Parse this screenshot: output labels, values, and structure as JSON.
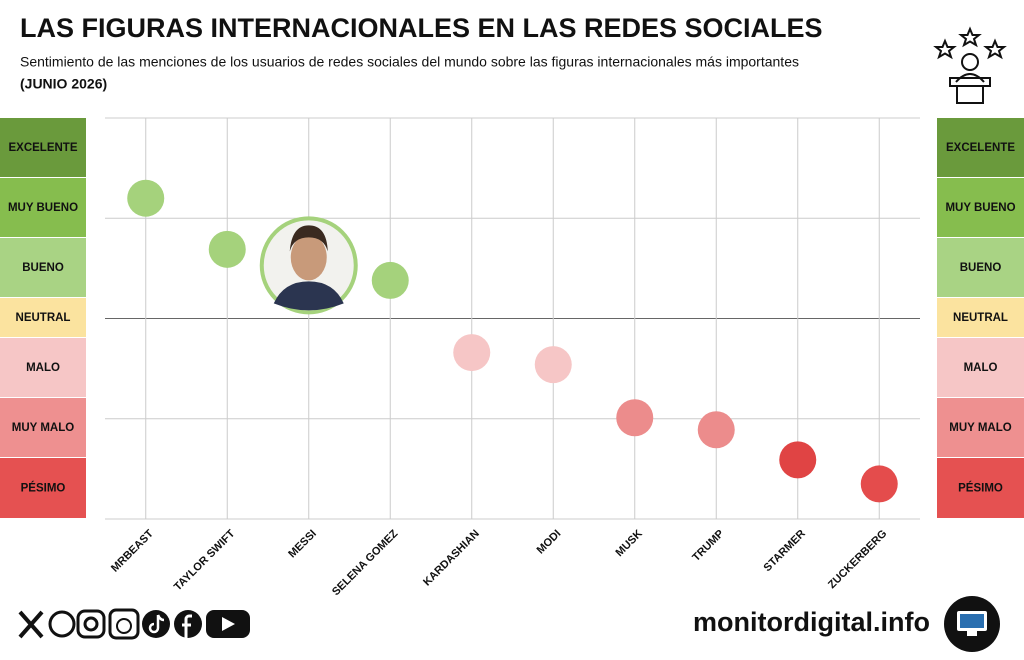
{
  "chart_data": {
    "type": "scatter",
    "title": "LAS FIGURAS INTERNACIONALES EN LAS REDES SOCIALES",
    "subtitle": "Sentimiento de las menciones de los usuarios de redes sociales del mundo sobre las figuras internacionales más importantes",
    "date": "(JUNIO 2026)",
    "categories": [
      "MRBEAST",
      "TAYLOR SWIFT",
      "MESSI",
      "SELENA GOMEZ",
      "KARDASHIAN",
      "MODI",
      "MUSK",
      "TRUMP",
      "STARMER",
      "ZUCKERBERG"
    ],
    "values": [
      1.2,
      0.69,
      0.53,
      0.38,
      -0.34,
      -0.46,
      -0.99,
      -1.11,
      -1.41,
      -1.65
    ],
    "colors": [
      "#a5d27c",
      "#a5d27c",
      "#a5d27c",
      "#a5d27c",
      "#f6c6c6",
      "#f6c6c6",
      "#ec8c8c",
      "#ec8c8c",
      "#e04444",
      "#e44c4c"
    ],
    "highlight_index": 2,
    "ylim": [
      -2,
      2
    ],
    "yticks": [
      -2,
      -1,
      0,
      1,
      2
    ],
    "grid": true,
    "sentiment_scale": [
      {
        "label": "EXCELENTE",
        "color": "#6a9a3c"
      },
      {
        "label": "MUY BUENO",
        "color": "#86bd4e"
      },
      {
        "label": "BUENO",
        "color": "#a9d384"
      },
      {
        "label": "NEUTRAL",
        "color": "#fbe39f"
      },
      {
        "label": "MALO",
        "color": "#f6c6c6"
      },
      {
        "label": "MUY MALO",
        "color": "#ee9090"
      },
      {
        "label": "PÉSIMO",
        "color": "#e55151"
      }
    ]
  },
  "footer": {
    "site": "monitordigital.info"
  }
}
